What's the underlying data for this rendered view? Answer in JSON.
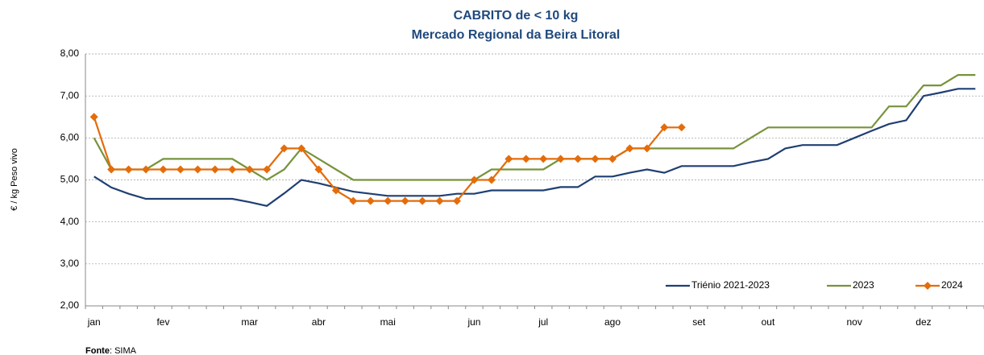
{
  "chart_data": {
    "type": "line",
    "title": "CABRITO de < 10 kg",
    "subtitle": "Mercado Regional da Beira Litoral",
    "y_label": "€ / kg Peso vivo",
    "source_label": "Fonte",
    "source": ": SIMA",
    "categories": [
      "jan",
      null,
      null,
      null,
      "fev",
      null,
      null,
      null,
      null,
      "mar",
      null,
      null,
      null,
      "abr",
      null,
      null,
      null,
      "mai",
      null,
      null,
      null,
      null,
      "jun",
      null,
      null,
      null,
      "jul",
      null,
      null,
      null,
      "ago",
      null,
      null,
      null,
      null,
      "set",
      null,
      null,
      null,
      "out",
      null,
      null,
      null,
      null,
      "nov",
      null,
      null,
      null,
      "dez",
      null,
      null,
      null
    ],
    "ylim": [
      2,
      8
    ],
    "yticks": [
      {
        "value": 2,
        "label": "2,00"
      },
      {
        "value": 3,
        "label": "3,00"
      },
      {
        "value": 4,
        "label": "4,00"
      },
      {
        "value": 5,
        "label": "5,00"
      },
      {
        "value": 6,
        "label": "6,00"
      },
      {
        "value": 7,
        "label": "7,00"
      },
      {
        "value": 8,
        "label": "8,00"
      }
    ],
    "grid": true,
    "legend": "bottom-right",
    "series": [
      {
        "name": "Triénio 2021-2023",
        "color": "#1f3f73",
        "marker": false,
        "values": [
          5.08,
          4.82,
          4.67,
          4.55,
          4.55,
          4.55,
          4.55,
          4.55,
          4.55,
          4.47,
          4.38,
          4.68,
          5.0,
          4.92,
          4.82,
          4.72,
          4.67,
          4.62,
          4.62,
          4.62,
          4.62,
          4.67,
          4.67,
          4.75,
          4.75,
          4.75,
          4.75,
          4.83,
          4.83,
          5.08,
          5.08,
          5.17,
          5.25,
          5.17,
          5.33,
          5.33,
          5.33,
          5.33,
          5.42,
          5.5,
          5.75,
          5.83,
          5.83,
          5.83,
          6.0,
          6.17,
          6.33,
          6.42,
          7.0,
          7.08,
          7.17,
          7.17
        ]
      },
      {
        "name": "2023",
        "color": "#77933c",
        "marker": false,
        "values": [
          6.0,
          5.25,
          5.25,
          5.25,
          5.5,
          5.5,
          5.5,
          5.5,
          5.5,
          5.25,
          5.0,
          5.25,
          5.75,
          5.5,
          5.25,
          5.0,
          5.0,
          5.0,
          5.0,
          5.0,
          5.0,
          5.0,
          5.0,
          5.25,
          5.25,
          5.25,
          5.25,
          5.5,
          5.5,
          5.5,
          5.5,
          5.75,
          5.75,
          5.75,
          5.75,
          5.75,
          5.75,
          5.75,
          6.0,
          6.25,
          6.25,
          6.25,
          6.25,
          6.25,
          6.25,
          6.25,
          6.75,
          6.75,
          7.25,
          7.25,
          7.5,
          7.5
        ]
      },
      {
        "name": "2024",
        "color": "#e46c0a",
        "marker": true,
        "values": [
          6.5,
          5.25,
          5.25,
          5.25,
          5.25,
          5.25,
          5.25,
          5.25,
          5.25,
          5.25,
          5.25,
          5.75,
          5.75,
          5.25,
          4.75,
          4.5,
          4.5,
          4.5,
          4.5,
          4.5,
          4.5,
          4.5,
          5.0,
          5.0,
          5.5,
          5.5,
          5.5,
          5.5,
          5.5,
          5.5,
          5.5,
          5.75,
          5.75,
          6.25,
          6.25,
          null,
          null,
          null,
          null,
          null,
          null,
          null,
          null,
          null,
          null,
          null,
          null,
          null,
          null,
          null,
          null,
          null
        ]
      }
    ]
  }
}
